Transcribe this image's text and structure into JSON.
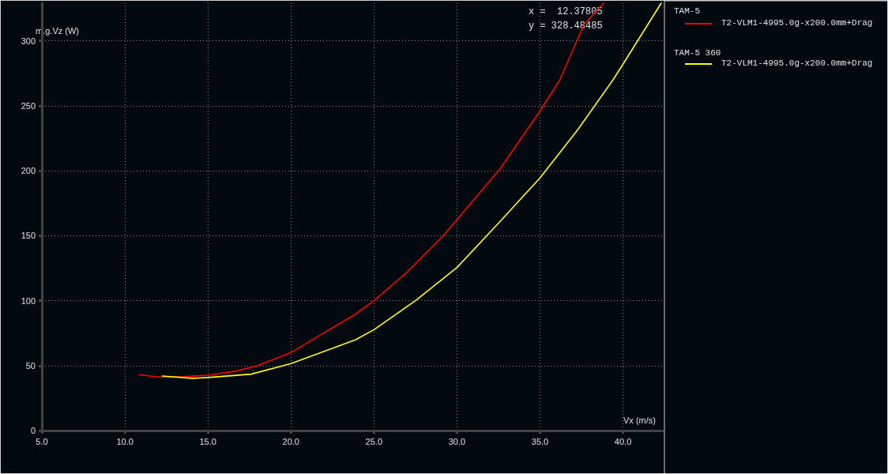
{
  "chart_data": {
    "type": "line",
    "xlabel": "Vx (m/s)",
    "ylabel": "m.g.Vz (W)",
    "xlim": [
      5,
      42.4
    ],
    "ylim": [
      0,
      329
    ],
    "xticks": [
      {
        "value": 5,
        "label": "5.0"
      },
      {
        "value": 10,
        "label": "10.0"
      },
      {
        "value": 15,
        "label": "15.0"
      },
      {
        "value": 20,
        "label": "20.0"
      },
      {
        "value": 25,
        "label": "25.0"
      },
      {
        "value": 30,
        "label": "30.0"
      },
      {
        "value": 35,
        "label": "35.0"
      },
      {
        "value": 40,
        "label": "40.0"
      }
    ],
    "yticks": [
      0,
      50,
      100,
      150,
      200,
      250,
      300
    ],
    "grid": true,
    "legend": "right",
    "line_style": "solid",
    "marker": "none",
    "annotations": [
      "x =  12.37805",
      "y = 328.48485",
      "TAM-5",
      "TAM-5 360"
    ],
    "series": [
      {
        "name": "T2-VLM1-4995.0g-x200.0mm+Drag",
        "color": "#ff0000",
        "x": [
          10.84,
          12,
          13.5,
          15,
          16.8,
          18,
          20,
          21.5,
          23.9,
          25,
          27,
          29.1,
          30,
          32.6,
          35,
          36.2,
          37.65,
          38.84
        ],
        "values": [
          43,
          41.2,
          41.4,
          42.6,
          46,
          50,
          60,
          71.5,
          89.7,
          100,
          122,
          149,
          162.4,
          201.6,
          246,
          270,
          312.7,
          329
        ]
      },
      {
        "name": "T2-VLM1-4995.0g-x200.0mm+Drag",
        "color": "#ffff00",
        "x": [
          12.26,
          14.07,
          15,
          17.6,
          20,
          23.9,
          25,
          27.5,
          30,
          32.6,
          35,
          37.3,
          39.4,
          40,
          42.3
        ],
        "values": [
          42,
          40.2,
          40.8,
          43.4,
          51.5,
          69.9,
          77.6,
          100,
          125.5,
          161,
          194.5,
          232,
          270,
          282,
          329
        ]
      }
    ]
  }
}
